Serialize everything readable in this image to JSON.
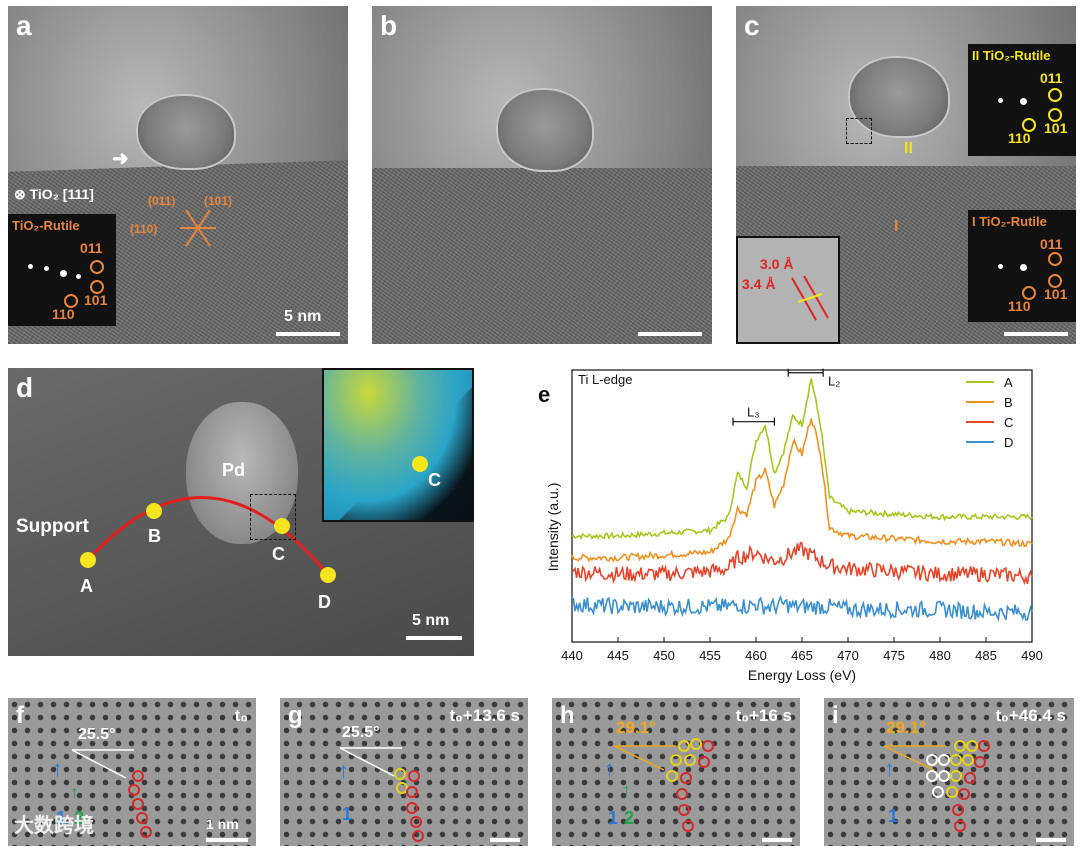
{
  "panels": {
    "a": {
      "label": "a",
      "zone_axis": "⊗ TiO₂ [111]",
      "fft_title": "TiO₂-Rutile",
      "fft_spots": [
        "011",
        "101",
        "110"
      ],
      "overlay_planes": [
        "(011)",
        "(101)",
        "(110)"
      ],
      "scale_bar": "5 nm"
    },
    "b": {
      "label": "b"
    },
    "c": {
      "label": "c",
      "region_I": "I",
      "region_II": "II",
      "fft_top_title": "II  TiO₂-Rutile",
      "fft_bottom_title": "I  TiO₂-Rutile",
      "fft_spots": [
        "011",
        "101",
        "110"
      ],
      "inset_spacings": [
        "3.0 Å",
        "3.4 Å"
      ]
    },
    "d": {
      "label": "d",
      "text_support": "Support",
      "text_pd": "Pd",
      "points": [
        "A",
        "B",
        "C",
        "D"
      ],
      "inset_point": "C",
      "scale_bar": "5 nm"
    },
    "f": {
      "label": "f",
      "angle": "25.5°",
      "time": "t₀",
      "arrow1": "1",
      "arrow2": "2",
      "scale_bar": "1 nm"
    },
    "g": {
      "label": "g",
      "angle": "25.5°",
      "time": "t₀+13.6 s",
      "arrow1": "1"
    },
    "h": {
      "label": "h",
      "angle": "29.1°",
      "time": "t₀+16 s",
      "arrow1": "1",
      "arrow2": "2"
    },
    "i": {
      "label": "i",
      "angle": "29.1°",
      "time": "t₀+46.4 s",
      "arrow1": "1"
    }
  },
  "watermark": "大数跨境",
  "colors": {
    "A": "#a8c61c",
    "B": "#f0901e",
    "C": "#e8442a",
    "D": "#3a8fd0"
  },
  "chart_data": {
    "type": "line",
    "panel_label": "e",
    "title": "Ti L-edge",
    "edge_labels": [
      "L₃",
      "L₂"
    ],
    "xlabel": "Energy Loss (eV)",
    "ylabel": "Intensity (a.u.)",
    "xlim": [
      440,
      490
    ],
    "ylim": [
      0,
      1
    ],
    "xticks": [
      440,
      445,
      450,
      455,
      460,
      465,
      470,
      475,
      480,
      485,
      490
    ],
    "legend_position": "top-right",
    "x": [
      440,
      445,
      450,
      455,
      457,
      458,
      459,
      460,
      461,
      462,
      463,
      464,
      465,
      466,
      467,
      468,
      470,
      475,
      480,
      485,
      490
    ],
    "series": [
      {
        "name": "A",
        "values": [
          0.39,
          0.39,
          0.4,
          0.41,
          0.46,
          0.62,
          0.57,
          0.74,
          0.8,
          0.62,
          0.7,
          0.83,
          0.8,
          0.97,
          0.8,
          0.53,
          0.48,
          0.47,
          0.46,
          0.46,
          0.46
        ]
      },
      {
        "name": "B",
        "values": [
          0.31,
          0.31,
          0.32,
          0.33,
          0.38,
          0.49,
          0.47,
          0.59,
          0.63,
          0.5,
          0.58,
          0.74,
          0.69,
          0.83,
          0.7,
          0.42,
          0.39,
          0.38,
          0.37,
          0.37,
          0.36
        ]
      },
      {
        "name": "C",
        "values": [
          0.26,
          0.25,
          0.25,
          0.26,
          0.27,
          0.31,
          0.32,
          0.33,
          0.31,
          0.3,
          0.31,
          0.33,
          0.34,
          0.32,
          0.3,
          0.28,
          0.27,
          0.26,
          0.25,
          0.25,
          0.24
        ]
      },
      {
        "name": "D",
        "values": [
          0.14,
          0.13,
          0.13,
          0.13,
          0.13,
          0.14,
          0.13,
          0.14,
          0.13,
          0.13,
          0.14,
          0.13,
          0.13,
          0.13,
          0.13,
          0.13,
          0.12,
          0.12,
          0.12,
          0.11,
          0.11
        ]
      }
    ]
  }
}
